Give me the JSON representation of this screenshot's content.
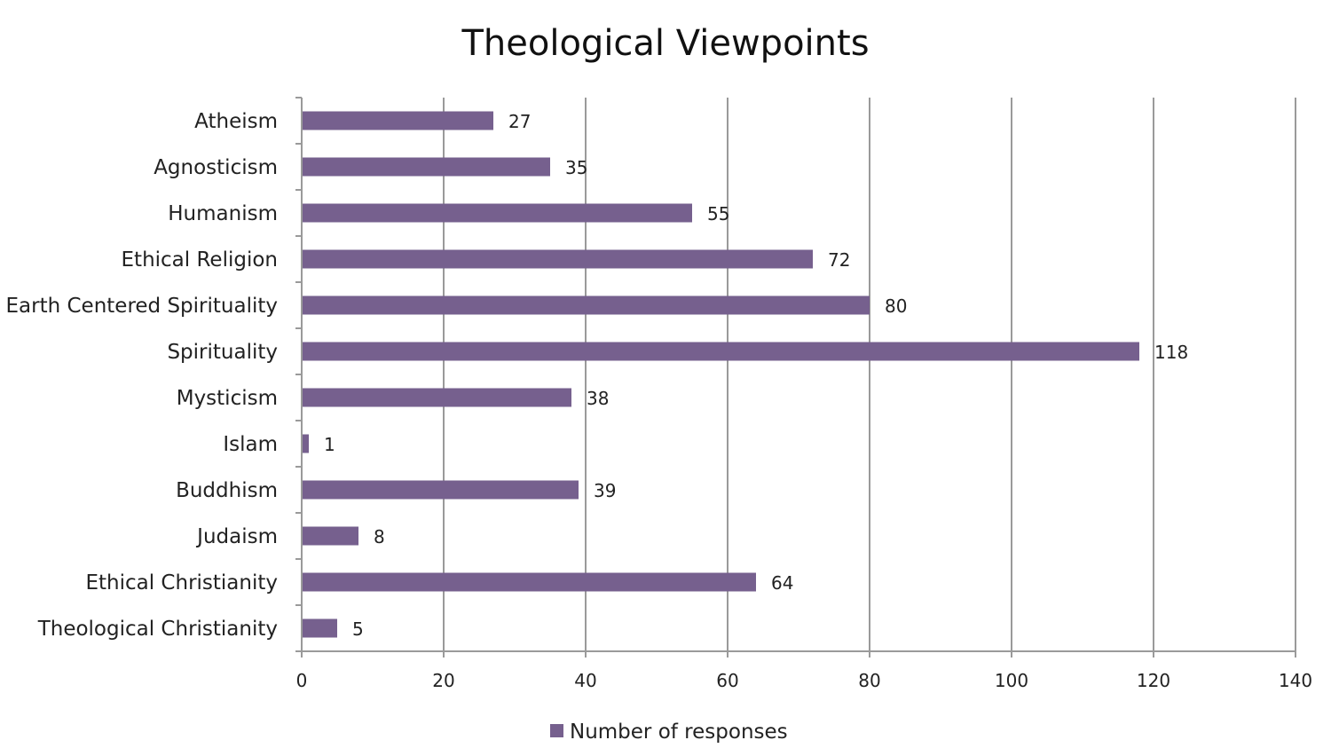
{
  "chart_data": {
    "type": "bar",
    "orientation": "horizontal",
    "title": "Theological Viewpoints",
    "categories": [
      "Atheism",
      "Agnosticism",
      "Humanism",
      "Ethical Religion",
      "Earth Centered Spirituality",
      "Spirituality",
      "Mysticism",
      "Islam",
      "Buddhism",
      "Judaism",
      "Ethical Christianity",
      "Theological Christianity"
    ],
    "series": [
      {
        "name": "Number of responses",
        "values": [
          27,
          35,
          55,
          72,
          80,
          118,
          38,
          1,
          39,
          8,
          64,
          5
        ],
        "color": "#76608e"
      }
    ],
    "x_ticks": [
      "0",
      "20",
      "40",
      "60",
      "80",
      "100",
      "120",
      "140"
    ],
    "xlim": [
      0,
      140
    ],
    "grid": true,
    "legend_position": "bottom",
    "show_data_labels": true
  }
}
